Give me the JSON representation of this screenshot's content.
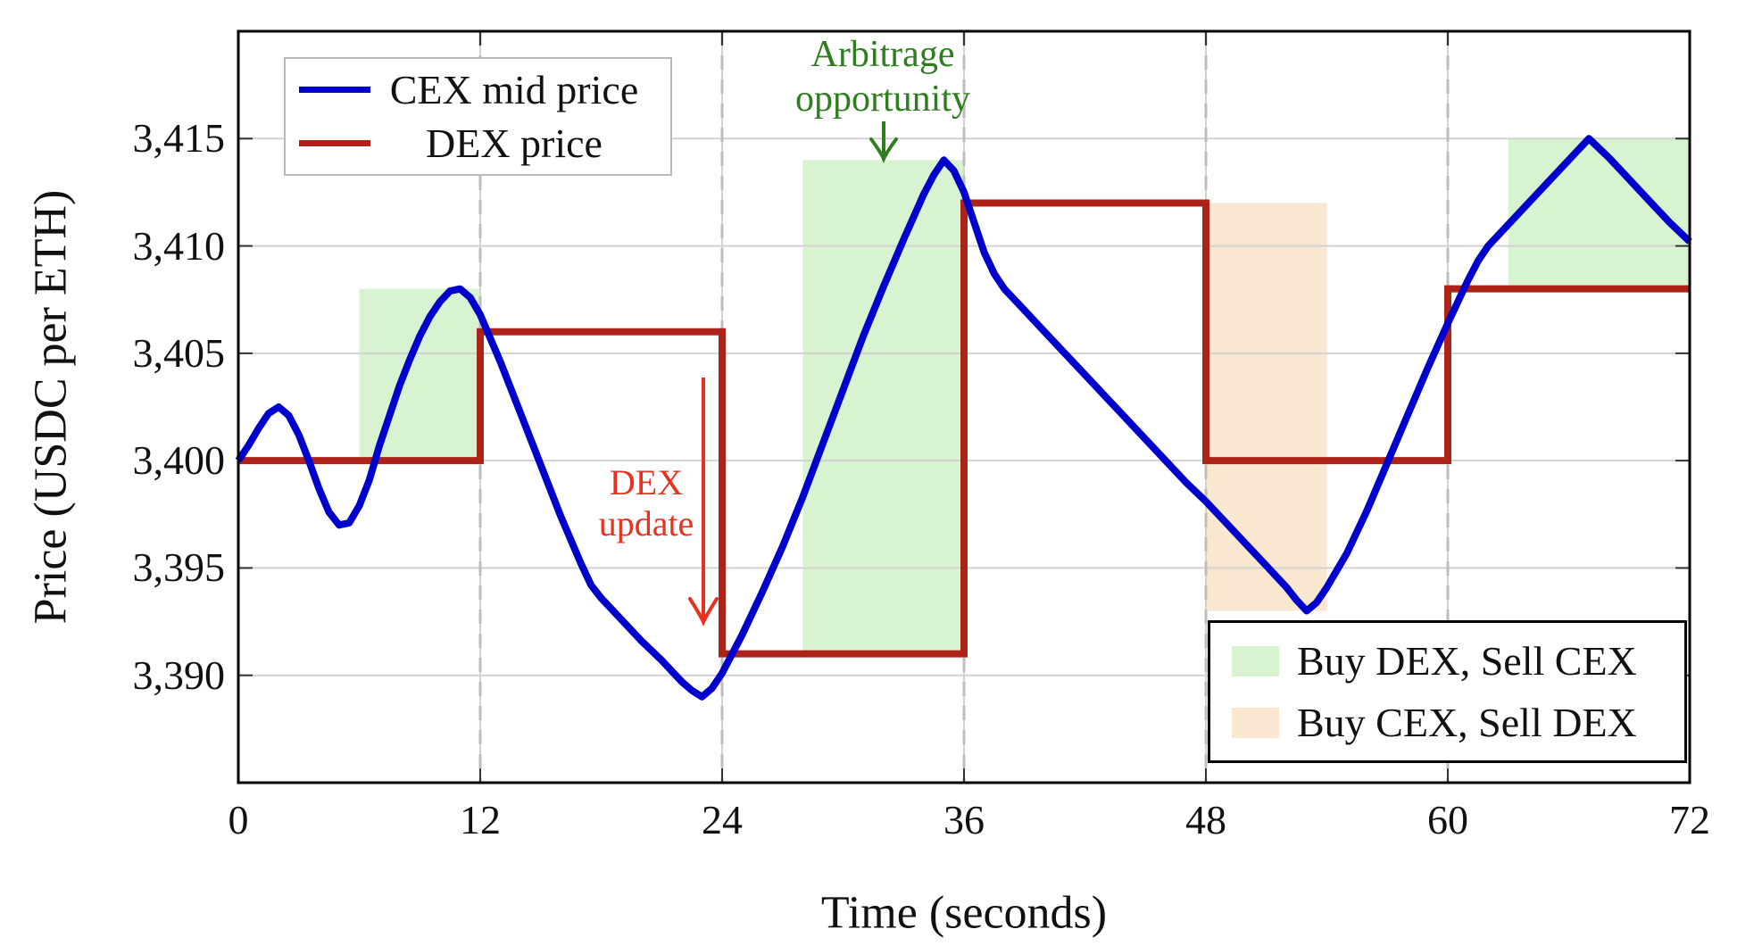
{
  "chart_data": {
    "type": "line",
    "title": "",
    "xlabel": "Time (seconds)",
    "ylabel": "Price (USDC per ETH)",
    "xlim": [
      0,
      72
    ],
    "ylim": [
      3385,
      3420
    ],
    "grid": true,
    "legend_positions": [
      "top-left",
      "bottom-right"
    ],
    "xticks": [
      {
        "v": 0,
        "label": "0"
      },
      {
        "v": 12,
        "label": "12"
      },
      {
        "v": 24,
        "label": "24"
      },
      {
        "v": 36,
        "label": "36"
      },
      {
        "v": 48,
        "label": "48"
      },
      {
        "v": 60,
        "label": "60"
      },
      {
        "v": 72,
        "label": "72"
      }
    ],
    "yticks": [
      {
        "v": 3390,
        "label": "3,390"
      },
      {
        "v": 3395,
        "label": "3,395"
      },
      {
        "v": 3400,
        "label": "3,400"
      },
      {
        "v": 3405,
        "label": "3,405"
      },
      {
        "v": 3410,
        "label": "3,410"
      },
      {
        "v": 3415,
        "label": "3,415"
      }
    ],
    "dex_update_times": [
      12,
      24,
      36,
      48,
      60
    ],
    "series": [
      {
        "name": "CEX mid price",
        "type": "line",
        "color": "#0000cc",
        "points": [
          [
            0,
            3400
          ],
          [
            0.5,
            3400.7
          ],
          [
            1,
            3401.5
          ],
          [
            1.5,
            3402.2
          ],
          [
            2,
            3402.5
          ],
          [
            2.5,
            3402.1
          ],
          [
            3,
            3401.2
          ],
          [
            3.5,
            3400
          ],
          [
            4,
            3398.7
          ],
          [
            4.5,
            3397.6
          ],
          [
            5,
            3397
          ],
          [
            5.5,
            3397.1
          ],
          [
            6,
            3397.9
          ],
          [
            6.5,
            3399.1
          ],
          [
            7,
            3400.7
          ],
          [
            7.5,
            3402.1
          ],
          [
            8,
            3403.5
          ],
          [
            8.5,
            3404.7
          ],
          [
            9,
            3405.8
          ],
          [
            9.5,
            3406.7
          ],
          [
            10,
            3407.4
          ],
          [
            10.5,
            3407.9
          ],
          [
            11,
            3408
          ],
          [
            11.5,
            3407.6
          ],
          [
            12,
            3406.8
          ],
          [
            13,
            3404.6
          ],
          [
            14,
            3402.2
          ],
          [
            15,
            3399.8
          ],
          [
            16,
            3397.4
          ],
          [
            17,
            3395.2
          ],
          [
            17.5,
            3394.2
          ],
          [
            18,
            3393.6
          ],
          [
            19,
            3392.6
          ],
          [
            20,
            3391.6
          ],
          [
            21,
            3390.7
          ],
          [
            22,
            3389.7
          ],
          [
            22.5,
            3389.3
          ],
          [
            23,
            3389
          ],
          [
            23.5,
            3389.4
          ],
          [
            24,
            3390.1
          ],
          [
            25,
            3391.9
          ],
          [
            26,
            3393.9
          ],
          [
            27,
            3396
          ],
          [
            28,
            3398.3
          ],
          [
            29,
            3400.8
          ],
          [
            30,
            3403.3
          ],
          [
            31,
            3405.8
          ],
          [
            32,
            3408.1
          ],
          [
            33,
            3410.3
          ],
          [
            34,
            3412.4
          ],
          [
            34.5,
            3413.3
          ],
          [
            35,
            3414
          ],
          [
            35.5,
            3413.5
          ],
          [
            36,
            3412.5
          ],
          [
            36.5,
            3411.1
          ],
          [
            37,
            3409.7
          ],
          [
            37.5,
            3408.7
          ],
          [
            38,
            3408
          ],
          [
            39,
            3407
          ],
          [
            40,
            3406
          ],
          [
            41,
            3405
          ],
          [
            42,
            3404
          ],
          [
            43,
            3403
          ],
          [
            44,
            3402
          ],
          [
            45,
            3401
          ],
          [
            46,
            3400
          ],
          [
            47,
            3399
          ],
          [
            48,
            3398.1
          ],
          [
            49,
            3397.1
          ],
          [
            50,
            3396.1
          ],
          [
            51,
            3395.1
          ],
          [
            52,
            3394.1
          ],
          [
            52.5,
            3393.5
          ],
          [
            53,
            3393
          ],
          [
            53.5,
            3393.4
          ],
          [
            54,
            3394.1
          ],
          [
            55,
            3395.7
          ],
          [
            56,
            3397.7
          ],
          [
            57,
            3399.9
          ],
          [
            58,
            3402.1
          ],
          [
            59,
            3404.3
          ],
          [
            60,
            3406.4
          ],
          [
            61,
            3408.4
          ],
          [
            61.5,
            3409.3
          ],
          [
            62,
            3410
          ],
          [
            63,
            3411
          ],
          [
            64,
            3412
          ],
          [
            65,
            3413
          ],
          [
            66,
            3414
          ],
          [
            67,
            3415
          ],
          [
            68,
            3414.1
          ],
          [
            69,
            3413.1
          ],
          [
            70,
            3412.1
          ],
          [
            71,
            3411.1
          ],
          [
            72,
            3410.2
          ]
        ]
      },
      {
        "name": "DEX price",
        "type": "step",
        "color": "#ae2317",
        "segments": [
          {
            "t0": 0,
            "t1": 12,
            "price": 3400
          },
          {
            "t0": 12,
            "t1": 24,
            "price": 3406
          },
          {
            "t0": 24,
            "t1": 36,
            "price": 3391
          },
          {
            "t0": 36,
            "t1": 48,
            "price": 3412
          },
          {
            "t0": 48,
            "t1": 60,
            "price": 3400
          },
          {
            "t0": 60,
            "t1": 72,
            "price": 3408
          }
        ]
      }
    ],
    "regions": [
      {
        "label": "Buy DEX, Sell CEX",
        "t0": 6,
        "t1": 12,
        "p0": 3400,
        "p1": 3408
      },
      {
        "label": "Buy DEX, Sell CEX",
        "t0": 28,
        "t1": 36,
        "p0": 3391,
        "p1": 3414
      },
      {
        "label": "Buy CEX, Sell DEX",
        "t0": 48,
        "t1": 54,
        "p0": 3393,
        "p1": 3412
      },
      {
        "label": "Buy DEX, Sell CEX",
        "t0": 63,
        "t1": 72,
        "p0": 3408,
        "p1": 3415
      }
    ],
    "region_legend": [
      {
        "label": "Buy DEX, Sell CEX",
        "color": "#d8f3d0"
      },
      {
        "label": "Buy CEX, Sell DEX",
        "color": "#fae7d0"
      }
    ]
  },
  "annotations": {
    "arbitrage": {
      "line1": "Arbitrage",
      "line2": "opportunity",
      "color": "#2e7d1f"
    },
    "dex_update": {
      "line1": "DEX",
      "line2": "update",
      "color": "#e8321f"
    }
  },
  "colors": {
    "grid": "#d2d2d2",
    "dashed_marker": "#bdbdbd",
    "axis": "#000000",
    "tick": "#333333",
    "plot_background": "#ffffff",
    "series_legend_border": "#b9b9b9",
    "region_legend_border": "#000000"
  }
}
